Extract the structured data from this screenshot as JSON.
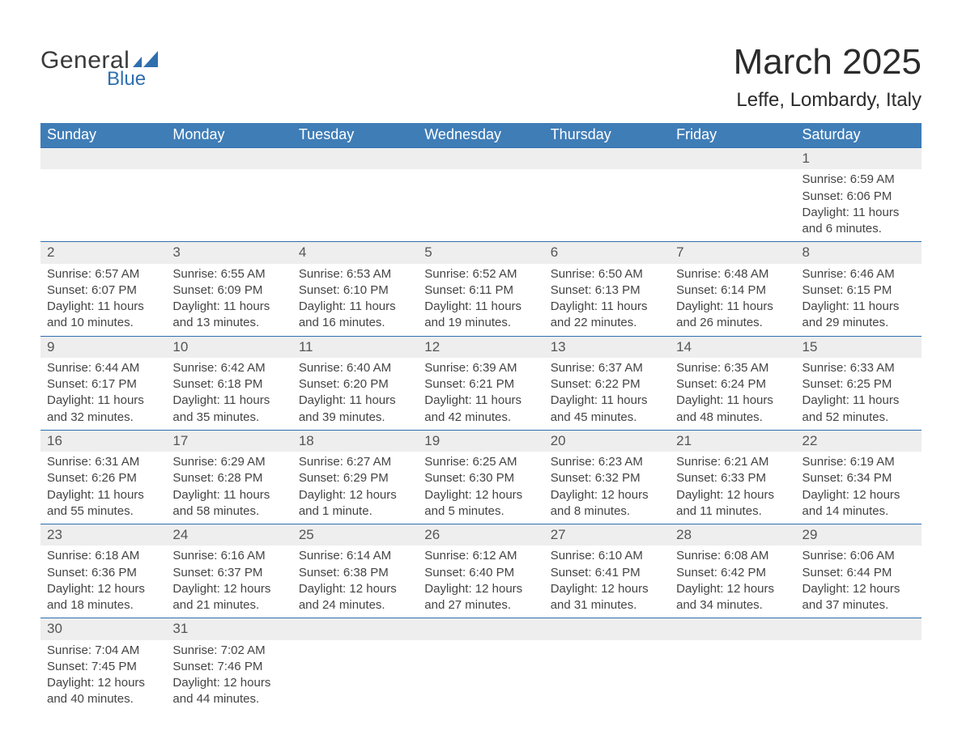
{
  "logo": {
    "text1": "General",
    "text2": "Blue",
    "icon_color": "#2f6fae"
  },
  "title": "March 2025",
  "subtitle": "Leffe, Lombardy, Italy",
  "colors": {
    "header_bg": "#3f7db7",
    "header_fg": "#ffffff",
    "daynum_bg": "#eeeeee",
    "row_border": "#2f6fae",
    "text": "#3a3a3a"
  },
  "typography": {
    "title_fontsize": 44,
    "subtitle_fontsize": 24,
    "th_fontsize": 18,
    "daynum_fontsize": 17,
    "data_fontsize": 15
  },
  "layout": {
    "cols": 7,
    "col_width_pct": 14.2857
  },
  "weekdays": [
    "Sunday",
    "Monday",
    "Tuesday",
    "Wednesday",
    "Thursday",
    "Friday",
    "Saturday"
  ],
  "weeks": [
    [
      null,
      null,
      null,
      null,
      null,
      null,
      {
        "n": "1",
        "sunrise": "Sunrise: 6:59 AM",
        "sunset": "Sunset: 6:06 PM",
        "dl1": "Daylight: 11 hours",
        "dl2": "and 6 minutes."
      }
    ],
    [
      {
        "n": "2",
        "sunrise": "Sunrise: 6:57 AM",
        "sunset": "Sunset: 6:07 PM",
        "dl1": "Daylight: 11 hours",
        "dl2": "and 10 minutes."
      },
      {
        "n": "3",
        "sunrise": "Sunrise: 6:55 AM",
        "sunset": "Sunset: 6:09 PM",
        "dl1": "Daylight: 11 hours",
        "dl2": "and 13 minutes."
      },
      {
        "n": "4",
        "sunrise": "Sunrise: 6:53 AM",
        "sunset": "Sunset: 6:10 PM",
        "dl1": "Daylight: 11 hours",
        "dl2": "and 16 minutes."
      },
      {
        "n": "5",
        "sunrise": "Sunrise: 6:52 AM",
        "sunset": "Sunset: 6:11 PM",
        "dl1": "Daylight: 11 hours",
        "dl2": "and 19 minutes."
      },
      {
        "n": "6",
        "sunrise": "Sunrise: 6:50 AM",
        "sunset": "Sunset: 6:13 PM",
        "dl1": "Daylight: 11 hours",
        "dl2": "and 22 minutes."
      },
      {
        "n": "7",
        "sunrise": "Sunrise: 6:48 AM",
        "sunset": "Sunset: 6:14 PM",
        "dl1": "Daylight: 11 hours",
        "dl2": "and 26 minutes."
      },
      {
        "n": "8",
        "sunrise": "Sunrise: 6:46 AM",
        "sunset": "Sunset: 6:15 PM",
        "dl1": "Daylight: 11 hours",
        "dl2": "and 29 minutes."
      }
    ],
    [
      {
        "n": "9",
        "sunrise": "Sunrise: 6:44 AM",
        "sunset": "Sunset: 6:17 PM",
        "dl1": "Daylight: 11 hours",
        "dl2": "and 32 minutes."
      },
      {
        "n": "10",
        "sunrise": "Sunrise: 6:42 AM",
        "sunset": "Sunset: 6:18 PM",
        "dl1": "Daylight: 11 hours",
        "dl2": "and 35 minutes."
      },
      {
        "n": "11",
        "sunrise": "Sunrise: 6:40 AM",
        "sunset": "Sunset: 6:20 PM",
        "dl1": "Daylight: 11 hours",
        "dl2": "and 39 minutes."
      },
      {
        "n": "12",
        "sunrise": "Sunrise: 6:39 AM",
        "sunset": "Sunset: 6:21 PM",
        "dl1": "Daylight: 11 hours",
        "dl2": "and 42 minutes."
      },
      {
        "n": "13",
        "sunrise": "Sunrise: 6:37 AM",
        "sunset": "Sunset: 6:22 PM",
        "dl1": "Daylight: 11 hours",
        "dl2": "and 45 minutes."
      },
      {
        "n": "14",
        "sunrise": "Sunrise: 6:35 AM",
        "sunset": "Sunset: 6:24 PM",
        "dl1": "Daylight: 11 hours",
        "dl2": "and 48 minutes."
      },
      {
        "n": "15",
        "sunrise": "Sunrise: 6:33 AM",
        "sunset": "Sunset: 6:25 PM",
        "dl1": "Daylight: 11 hours",
        "dl2": "and 52 minutes."
      }
    ],
    [
      {
        "n": "16",
        "sunrise": "Sunrise: 6:31 AM",
        "sunset": "Sunset: 6:26 PM",
        "dl1": "Daylight: 11 hours",
        "dl2": "and 55 minutes."
      },
      {
        "n": "17",
        "sunrise": "Sunrise: 6:29 AM",
        "sunset": "Sunset: 6:28 PM",
        "dl1": "Daylight: 11 hours",
        "dl2": "and 58 minutes."
      },
      {
        "n": "18",
        "sunrise": "Sunrise: 6:27 AM",
        "sunset": "Sunset: 6:29 PM",
        "dl1": "Daylight: 12 hours",
        "dl2": "and 1 minute."
      },
      {
        "n": "19",
        "sunrise": "Sunrise: 6:25 AM",
        "sunset": "Sunset: 6:30 PM",
        "dl1": "Daylight: 12 hours",
        "dl2": "and 5 minutes."
      },
      {
        "n": "20",
        "sunrise": "Sunrise: 6:23 AM",
        "sunset": "Sunset: 6:32 PM",
        "dl1": "Daylight: 12 hours",
        "dl2": "and 8 minutes."
      },
      {
        "n": "21",
        "sunrise": "Sunrise: 6:21 AM",
        "sunset": "Sunset: 6:33 PM",
        "dl1": "Daylight: 12 hours",
        "dl2": "and 11 minutes."
      },
      {
        "n": "22",
        "sunrise": "Sunrise: 6:19 AM",
        "sunset": "Sunset: 6:34 PM",
        "dl1": "Daylight: 12 hours",
        "dl2": "and 14 minutes."
      }
    ],
    [
      {
        "n": "23",
        "sunrise": "Sunrise: 6:18 AM",
        "sunset": "Sunset: 6:36 PM",
        "dl1": "Daylight: 12 hours",
        "dl2": "and 18 minutes."
      },
      {
        "n": "24",
        "sunrise": "Sunrise: 6:16 AM",
        "sunset": "Sunset: 6:37 PM",
        "dl1": "Daylight: 12 hours",
        "dl2": "and 21 minutes."
      },
      {
        "n": "25",
        "sunrise": "Sunrise: 6:14 AM",
        "sunset": "Sunset: 6:38 PM",
        "dl1": "Daylight: 12 hours",
        "dl2": "and 24 minutes."
      },
      {
        "n": "26",
        "sunrise": "Sunrise: 6:12 AM",
        "sunset": "Sunset: 6:40 PM",
        "dl1": "Daylight: 12 hours",
        "dl2": "and 27 minutes."
      },
      {
        "n": "27",
        "sunrise": "Sunrise: 6:10 AM",
        "sunset": "Sunset: 6:41 PM",
        "dl1": "Daylight: 12 hours",
        "dl2": "and 31 minutes."
      },
      {
        "n": "28",
        "sunrise": "Sunrise: 6:08 AM",
        "sunset": "Sunset: 6:42 PM",
        "dl1": "Daylight: 12 hours",
        "dl2": "and 34 minutes."
      },
      {
        "n": "29",
        "sunrise": "Sunrise: 6:06 AM",
        "sunset": "Sunset: 6:44 PM",
        "dl1": "Daylight: 12 hours",
        "dl2": "and 37 minutes."
      }
    ],
    [
      {
        "n": "30",
        "sunrise": "Sunrise: 7:04 AM",
        "sunset": "Sunset: 7:45 PM",
        "dl1": "Daylight: 12 hours",
        "dl2": "and 40 minutes."
      },
      {
        "n": "31",
        "sunrise": "Sunrise: 7:02 AM",
        "sunset": "Sunset: 7:46 PM",
        "dl1": "Daylight: 12 hours",
        "dl2": "and 44 minutes."
      },
      null,
      null,
      null,
      null,
      null
    ]
  ]
}
